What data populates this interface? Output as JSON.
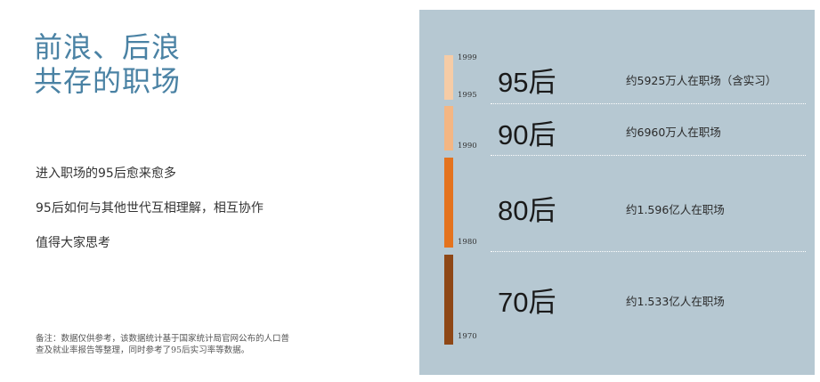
{
  "title": {
    "line1": "前浪、后浪",
    "line2": "共存的职场"
  },
  "body": [
    "进入职场的95后愈来愈多",
    "95后如何与其他世代互相理解，相互协作",
    "值得大家思考"
  ],
  "note": {
    "line1": "备注：数据仅供参考，该数据统计基于国家统计局官网公布的人口普",
    "line2": "查及就业率报告等整理，同时参考了95后实习率等数据。"
  },
  "panel": {
    "years": [
      "1999",
      "1995",
      "1990",
      "1980",
      "1970"
    ],
    "generations": [
      {
        "label": "95后",
        "desc": "约5925万人在职场（含实习）",
        "color": "#f6cca6"
      },
      {
        "label": "90后",
        "desc": "约6960万人在职场",
        "color": "#f4b683"
      },
      {
        "label": "80后",
        "desc": "约1.596亿人在职场",
        "color": "#e4731e"
      },
      {
        "label": "70后",
        "desc": "约1.533亿人在职场",
        "color": "#8e4716"
      }
    ]
  }
}
